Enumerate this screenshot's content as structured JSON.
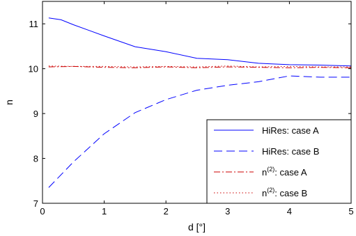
{
  "chart_data": {
    "type": "line",
    "xlabel": "d  [°]",
    "ylabel": "n",
    "xlim": [
      0,
      5
    ],
    "ylim": [
      7,
      11.5
    ],
    "xticks": [
      0,
      1,
      2,
      3,
      4,
      5
    ],
    "yticks": [
      7,
      8,
      9,
      10,
      11
    ],
    "grid": false,
    "legend_position": "bottom-right",
    "series": [
      {
        "name": "HiRes: case A",
        "color": "#0000ff",
        "dash": "solid",
        "x": [
          0.1,
          0.3,
          0.5,
          1.0,
          1.5,
          2.0,
          2.5,
          3.0,
          3.5,
          4.0,
          4.5,
          5.0
        ],
        "y": [
          11.13,
          11.09,
          10.98,
          10.73,
          10.49,
          10.38,
          10.23,
          10.2,
          10.12,
          10.09,
          10.08,
          10.06
        ]
      },
      {
        "name": "HiRes: case B",
        "color": "#0000ff",
        "dash": "dashed",
        "x": [
          0.1,
          0.5,
          1.0,
          1.5,
          2.0,
          2.5,
          3.0,
          3.5,
          4.0,
          4.5,
          5.0
        ],
        "y": [
          7.35,
          7.92,
          8.55,
          9.02,
          9.31,
          9.52,
          9.63,
          9.71,
          9.84,
          9.81,
          9.81
        ]
      },
      {
        "name": "n(2): case A",
        "label_base": "n",
        "label_sup": "(2)",
        "label_rest": ": case A",
        "color": "#cc0000",
        "dash": "dashdot",
        "x": [
          0.1,
          0.5,
          1.0,
          1.5,
          2.0,
          2.5,
          3.0,
          3.5,
          4.0,
          4.5,
          5.0
        ],
        "y": [
          10.04,
          10.05,
          10.03,
          10.02,
          10.04,
          10.02,
          10.04,
          10.03,
          10.02,
          10.03,
          10.02
        ]
      },
      {
        "name": "n(2): case B",
        "label_base": "n",
        "label_sup": "(2)",
        "label_rest": ": case B",
        "color": "#cc0000",
        "dash": "dotted",
        "x": [
          0.1,
          0.5,
          1.0,
          1.5,
          2.0,
          2.5,
          3.0,
          3.5,
          4.0,
          4.5,
          5.0
        ],
        "y": [
          10.06,
          10.05,
          10.05,
          10.04,
          10.05,
          10.04,
          10.06,
          10.04,
          10.05,
          10.04,
          10.04
        ]
      }
    ]
  }
}
